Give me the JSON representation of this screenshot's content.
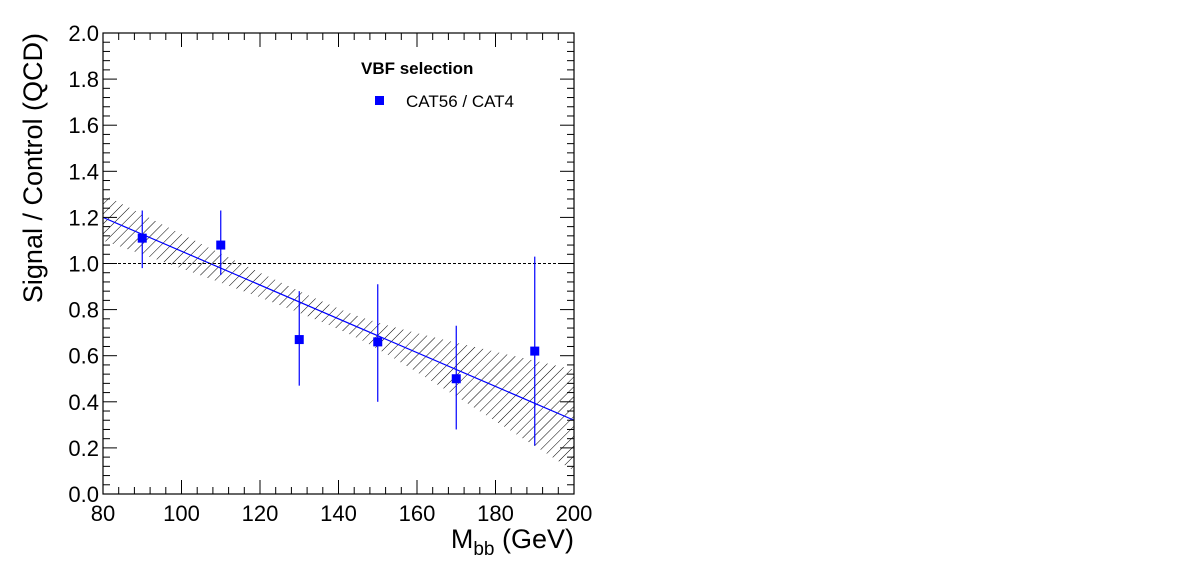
{
  "chart_data": {
    "type": "scatter",
    "xlabel_main": "M",
    "xlabel_sub": "bb",
    "xlabel_unit": " (GeV)",
    "ylabel": "Signal / Control (QCD)",
    "xlim": [
      80,
      200
    ],
    "ylim": [
      0.0,
      2.0
    ],
    "x_ticks": [
      "80",
      "100",
      "120",
      "140",
      "160",
      "180",
      "200"
    ],
    "y_ticks": [
      "0.0",
      "0.2",
      "0.4",
      "0.6",
      "0.8",
      "1.0",
      "1.2",
      "1.4",
      "1.6",
      "1.8",
      "2.0"
    ],
    "reference_line_y": 1.0,
    "legend": {
      "title": "VBF selection",
      "entry": "CAT56 / CAT4",
      "placement": "top-right"
    },
    "series": [
      {
        "name": "CAT56 / CAT4",
        "color": "#0000ff",
        "x": [
          90,
          110,
          130,
          150,
          170,
          190
        ],
        "y": [
          1.11,
          1.08,
          0.67,
          0.66,
          0.5,
          0.62
        ],
        "y_low": [
          0.98,
          0.95,
          0.47,
          0.4,
          0.28,
          0.21
        ],
        "y_high": [
          1.23,
          1.23,
          0.88,
          0.91,
          0.73,
          1.03
        ]
      }
    ],
    "fit": {
      "type": "linear",
      "color": "#0000ff",
      "x_range": [
        80,
        200
      ],
      "y_at_xmin": 1.2,
      "y_at_xmax": 0.32,
      "band_half_width_at_xmin": 0.1,
      "band_half_width_at_center": 0.045,
      "band_half_width_at_xmax": 0.22
    }
  }
}
